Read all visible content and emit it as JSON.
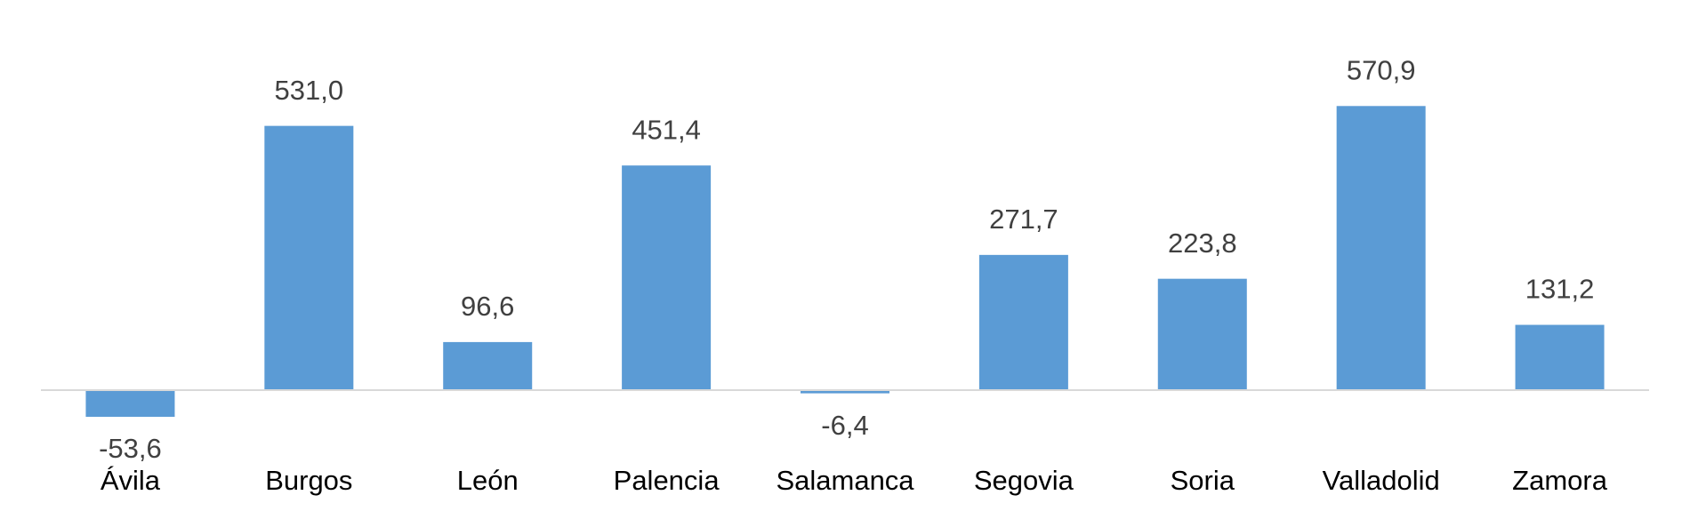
{
  "chart_data": {
    "type": "bar",
    "categories": [
      "Ávila",
      "Burgos",
      "León",
      "Palencia",
      "Salamanca",
      "Segovia",
      "Soria",
      "Valladolid",
      "Zamora"
    ],
    "values": [
      -53.6,
      531.0,
      96.6,
      451.4,
      -6.4,
      271.7,
      223.8,
      570.9,
      131.2
    ],
    "value_labels": [
      "-53,6",
      "531,0",
      "96,6",
      "451,4",
      "-6,4",
      "271,7",
      "223,8",
      "570,9",
      "131,2"
    ],
    "color": "#5b9bd5",
    "ylim": [
      -100,
      700
    ]
  }
}
